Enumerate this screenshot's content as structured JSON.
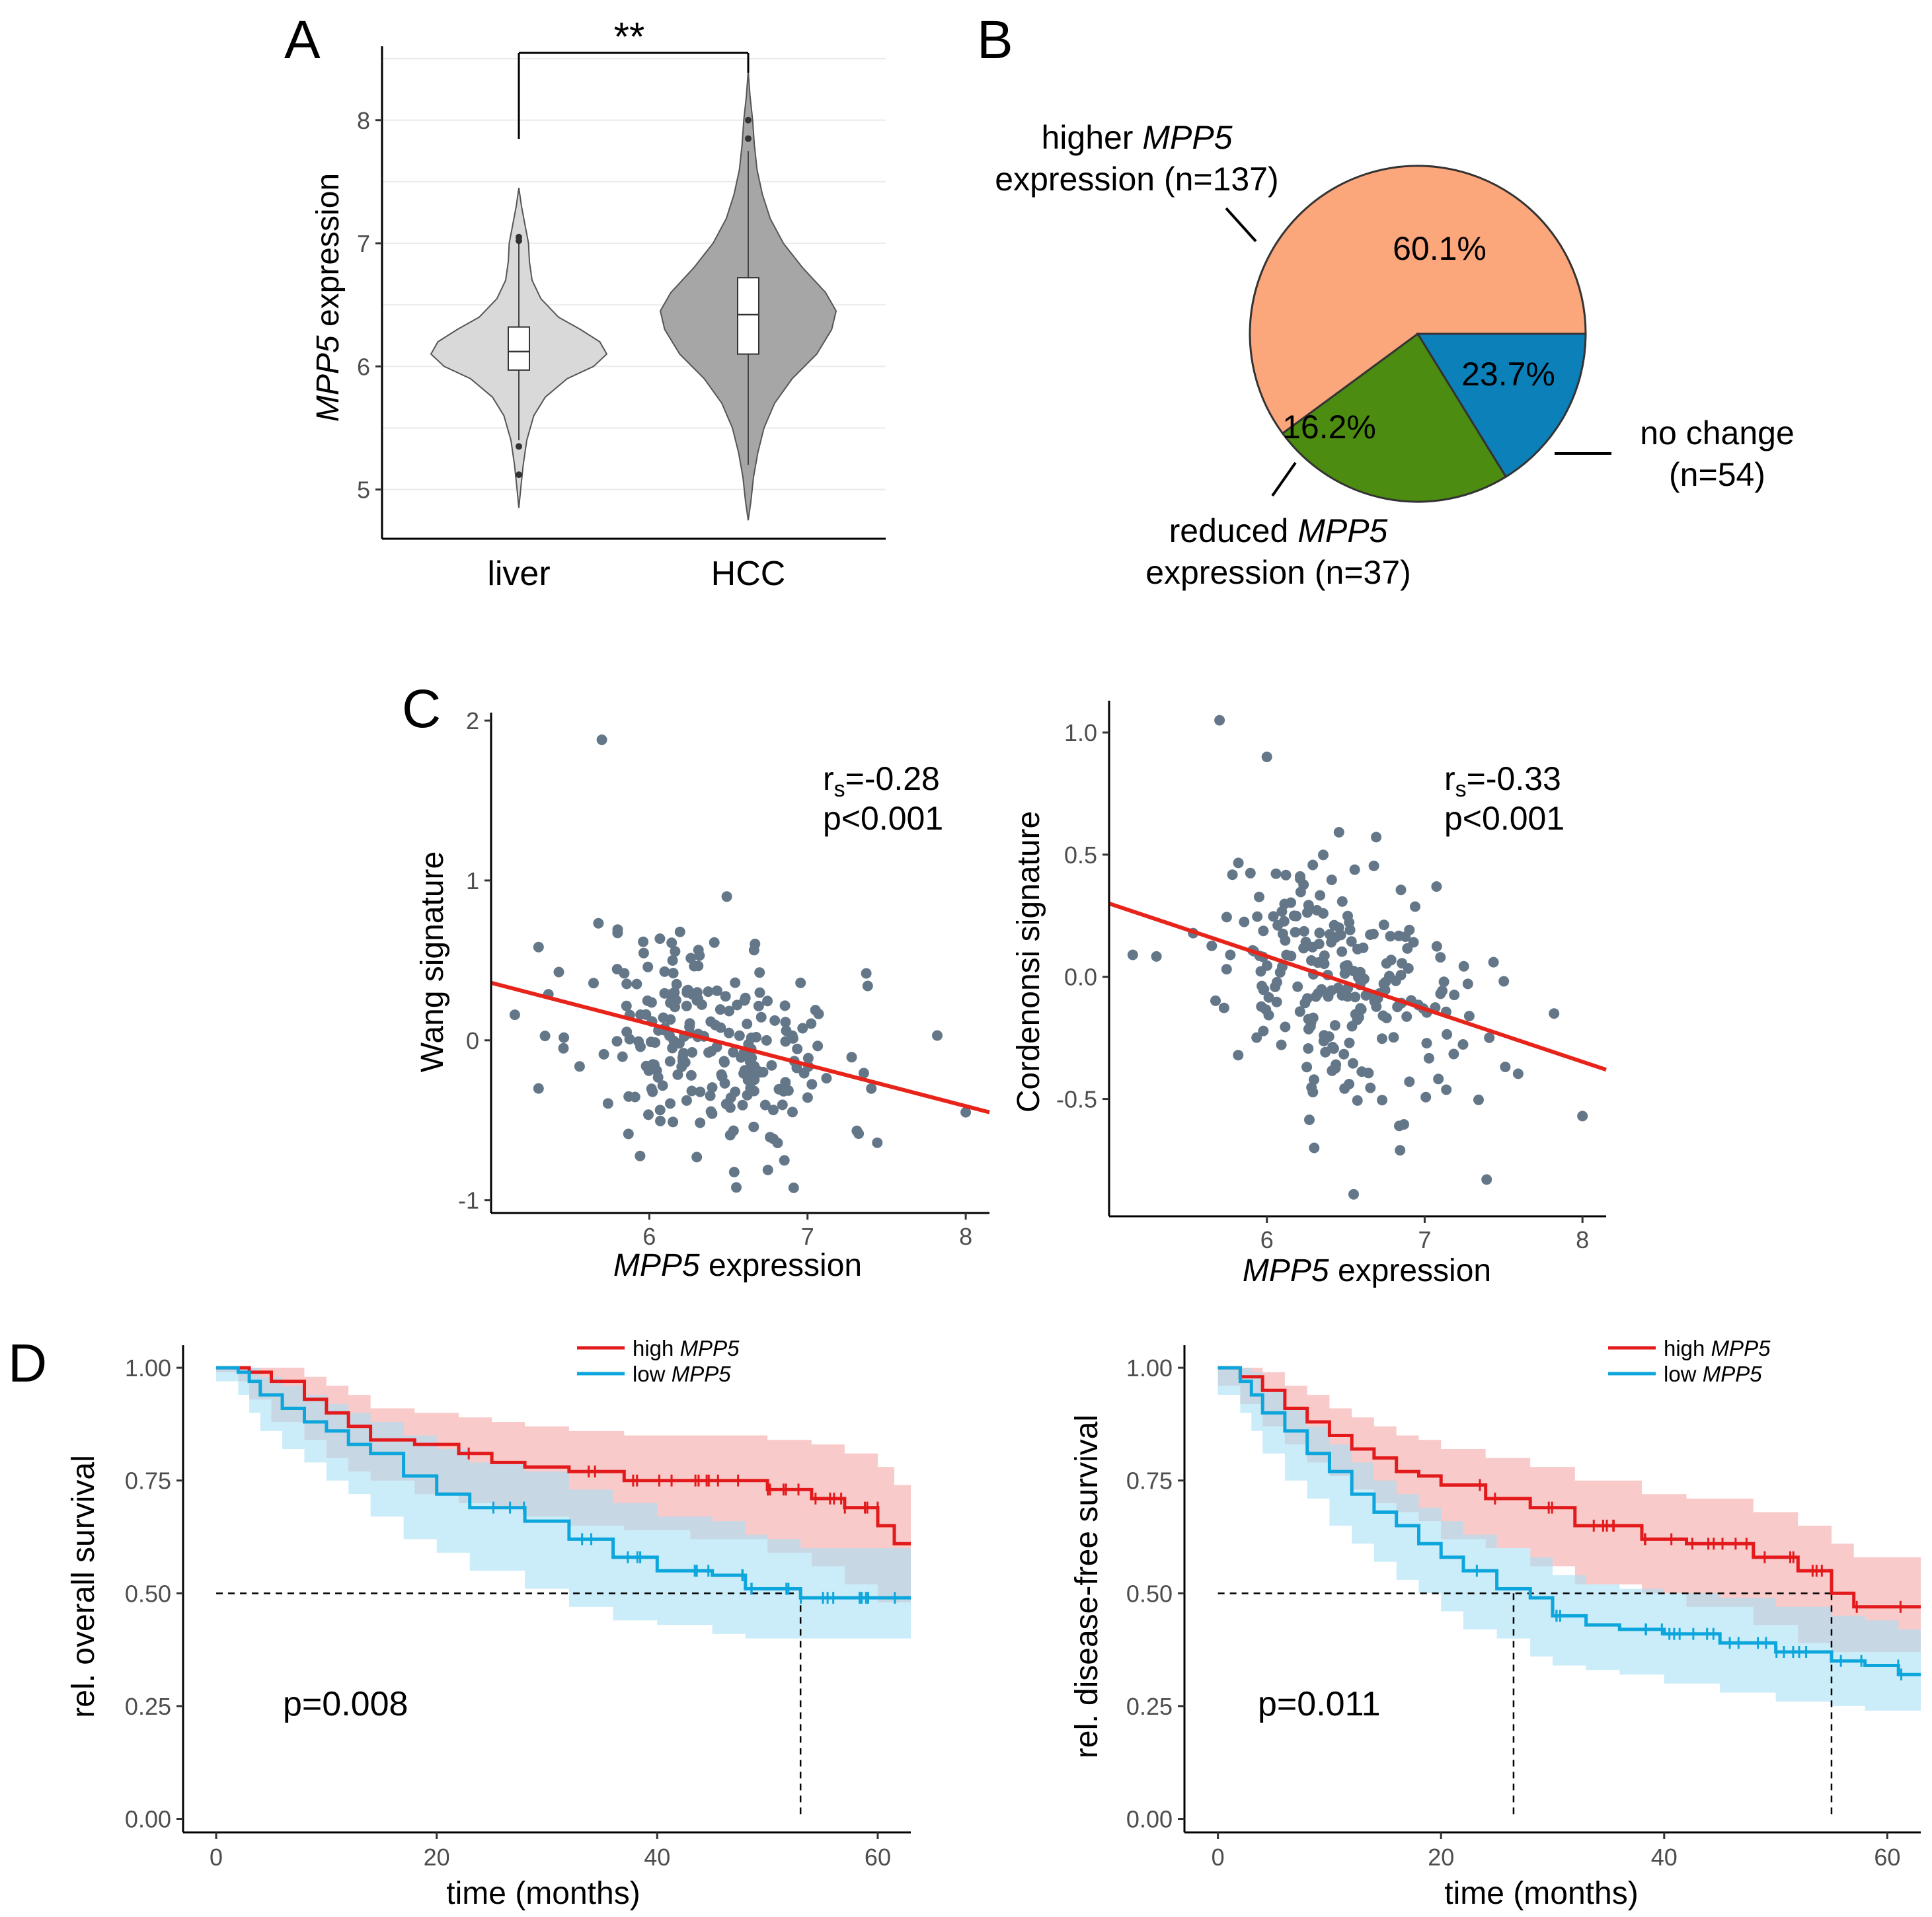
{
  "panels": {
    "A": {
      "letter": "A",
      "chart_data": {
        "type": "violin",
        "categories": [
          "liver",
          "HCC"
        ],
        "ylabel_gene": "MPP5",
        "ylabel_rest": " expression",
        "yticks": [
          5,
          6,
          7,
          8
        ],
        "ylim": [
          4.6,
          8.6
        ],
        "significance": "**",
        "groups": [
          {
            "name": "liver",
            "median": 6.12,
            "q1": 5.97,
            "q3": 6.32,
            "whisker_low": 5.4,
            "whisker_high": 7.0,
            "min": 4.85,
            "max": 7.45,
            "color": "#d9d9d9",
            "density": [
              [
                4.85,
                0.0
              ],
              [
                5.0,
                0.02
              ],
              [
                5.2,
                0.05
              ],
              [
                5.4,
                0.09
              ],
              [
                5.6,
                0.17
              ],
              [
                5.75,
                0.3
              ],
              [
                5.9,
                0.55
              ],
              [
                6.0,
                0.85
              ],
              [
                6.1,
                1.0
              ],
              [
                6.2,
                0.92
              ],
              [
                6.3,
                0.7
              ],
              [
                6.4,
                0.45
              ],
              [
                6.55,
                0.25
              ],
              [
                6.7,
                0.15
              ],
              [
                6.85,
                0.12
              ],
              [
                7.0,
                0.11
              ],
              [
                7.15,
                0.07
              ],
              [
                7.3,
                0.03
              ],
              [
                7.45,
                0.0
              ]
            ],
            "outliers": [
              5.35,
              5.12,
              7.02,
              7.05
            ]
          },
          {
            "name": "HCC",
            "median": 6.42,
            "q1": 6.1,
            "q3": 6.72,
            "whisker_low": 5.2,
            "whisker_high": 7.75,
            "min": 4.75,
            "max": 8.4,
            "color": "#a6a6a6",
            "density": [
              [
                4.75,
                0.0
              ],
              [
                4.9,
                0.03
              ],
              [
                5.1,
                0.06
              ],
              [
                5.3,
                0.11
              ],
              [
                5.5,
                0.18
              ],
              [
                5.7,
                0.3
              ],
              [
                5.9,
                0.5
              ],
              [
                6.1,
                0.78
              ],
              [
                6.3,
                0.95
              ],
              [
                6.45,
                1.0
              ],
              [
                6.6,
                0.88
              ],
              [
                6.8,
                0.62
              ],
              [
                7.0,
                0.4
              ],
              [
                7.2,
                0.25
              ],
              [
                7.4,
                0.16
              ],
              [
                7.6,
                0.1
              ],
              [
                7.8,
                0.07
              ],
              [
                8.0,
                0.05
              ],
              [
                8.2,
                0.02
              ],
              [
                8.4,
                0.0
              ]
            ],
            "outliers": [
              7.85,
              8.0
            ]
          }
        ]
      }
    },
    "B": {
      "letter": "B",
      "chart_data": {
        "type": "pie",
        "slices": [
          {
            "label": "higher MPP5 expression (n=137)",
            "value": 60.1,
            "pct": "60.1%",
            "color": "#fca67c"
          },
          {
            "label": "no change (n=54)",
            "value": 23.7,
            "pct": "23.7%",
            "color": "#4c8c10"
          },
          {
            "label": "reduced MPP5 expression (n=37)",
            "value": 16.2,
            "pct": "16.2%",
            "color": "#0c80b8"
          }
        ]
      },
      "labels": {
        "higher_l1_pre": "higher ",
        "higher_l1_gene": "MPP5",
        "higher_l2": "expression (n=137)",
        "nochange_l1": "no change",
        "nochange_l2": "(n=54)",
        "reduced_l1_pre": "reduced ",
        "reduced_l1_gene": "MPP5",
        "reduced_l2": "expression (n=37)"
      }
    },
    "C": {
      "letter": "C",
      "chart_data": [
        {
          "type": "scatter",
          "ylabel": "Wang signature",
          "xlabel_gene": "MPP5",
          "xlabel_rest": " expression",
          "xticks": [
            6,
            7,
            8
          ],
          "yticks": [
            -1,
            0,
            1,
            2
          ],
          "xlim": [
            5.0,
            8.15
          ],
          "ylim": [
            -1.08,
            2.05
          ],
          "fit": {
            "x0": 5.0,
            "y0": 0.36,
            "x1": 8.15,
            "y1": -0.45
          },
          "stat_r_main": "r",
          "stat_r_sub": "s",
          "stat_r_val": "=-0.28",
          "stat_p": "p<0.001",
          "color": "#647789",
          "line_color": "#e8231a",
          "seed": 11,
          "n_points": 228,
          "slope": -0.26,
          "intercept": 1.66,
          "noise": 0.34,
          "x_mean": 6.4,
          "x_sd": 0.42,
          "extra_points": [
            [
              5.7,
              1.88
            ],
            [
              5.15,
              0.16
            ],
            [
              7.82,
              0.03
            ],
            [
              6.55,
              -0.92
            ],
            [
              8.0,
              -0.45
            ],
            [
              6.3,
              -0.73
            ]
          ]
        },
        {
          "type": "scatter",
          "ylabel": "Cordenonsi signature",
          "xlabel_gene": "MPP5",
          "xlabel_rest": " expression",
          "xticks": [
            6,
            7,
            8
          ],
          "yticks": [
            -0.5,
            0.0,
            0.5,
            1.0
          ],
          "ytick_labels": [
            "-0.5",
            "0.0",
            "0.5",
            "1.0"
          ],
          "xlim": [
            5.0,
            8.15
          ],
          "ylim": [
            -0.98,
            1.13
          ],
          "fit": {
            "x0": 5.0,
            "y0": 0.3,
            "x1": 8.15,
            "y1": -0.38
          },
          "stat_r_main": "r",
          "stat_r_sub": "s",
          "stat_r_val": "=-0.33",
          "stat_p": "p<0.001",
          "color": "#647789",
          "line_color": "#e8231a",
          "seed": 29,
          "n_points": 228,
          "slope": -0.21,
          "intercept": 1.35,
          "noise": 0.24,
          "x_mean": 6.4,
          "x_sd": 0.42,
          "extra_points": [
            [
              5.7,
              1.05
            ],
            [
              6.0,
              0.9
            ],
            [
              5.15,
              0.09
            ],
            [
              6.3,
              -0.7
            ],
            [
              6.55,
              -0.89
            ],
            [
              8.0,
              -0.57
            ],
            [
              7.82,
              -0.15
            ]
          ]
        }
      ]
    },
    "D": {
      "letter": "D",
      "chart_data": [
        {
          "type": "line",
          "subtype": "kaplan-meier",
          "ylabel": "rel. overall survival",
          "xlabel": "time (months)",
          "xticks": [
            0,
            20,
            40,
            60
          ],
          "yticks": [
            0.0,
            0.25,
            0.5,
            0.75,
            1.0
          ],
          "ytick_labels": [
            "0.00",
            "0.25",
            "0.50",
            "0.75",
            "1.00"
          ],
          "xlim": [
            -3,
            63
          ],
          "ylim": [
            -0.03,
            1.05
          ],
          "pvalue": "p=0.008",
          "median_lines": [
            53
          ],
          "series": [
            {
              "name": "high",
              "gene": "MPP5",
              "color": "#e31a1c",
              "band": "#f4a6a6",
              "x": [
                0,
                2,
                3,
                5,
                8,
                10,
                12,
                14,
                18,
                22,
                25,
                28,
                32,
                37,
                43,
                50,
                54,
                57,
                60,
                61.5,
                63
              ],
              "y": [
                1.0,
                1.0,
                0.99,
                0.97,
                0.93,
                0.9,
                0.87,
                0.84,
                0.83,
                0.81,
                0.79,
                0.78,
                0.77,
                0.75,
                0.75,
                0.73,
                0.71,
                0.69,
                0.65,
                0.61,
                0.61
              ],
              "lower": [
                1.0,
                0.99,
                0.97,
                0.93,
                0.88,
                0.84,
                0.8,
                0.77,
                0.75,
                0.72,
                0.7,
                0.69,
                0.67,
                0.65,
                0.64,
                0.62,
                0.59,
                0.56,
                0.52,
                0.48,
                0.48
              ],
              "upper": [
                1.0,
                1.0,
                1.0,
                1.0,
                0.98,
                0.96,
                0.94,
                0.91,
                0.9,
                0.89,
                0.88,
                0.87,
                0.86,
                0.85,
                0.85,
                0.84,
                0.83,
                0.81,
                0.78,
                0.74,
                0.74
              ]
            },
            {
              "name": "low",
              "gene": "MPP5",
              "color": "#0ca6dc",
              "band": "#a8e0f5",
              "x": [
                0,
                2,
                3,
                4,
                6,
                8,
                10,
                12,
                14,
                17,
                20,
                23,
                28,
                32,
                36,
                40,
                45,
                48,
                50,
                53,
                56,
                60,
                63
              ],
              "y": [
                1.0,
                0.99,
                0.97,
                0.94,
                0.91,
                0.88,
                0.86,
                0.83,
                0.81,
                0.76,
                0.72,
                0.69,
                0.66,
                0.62,
                0.58,
                0.55,
                0.54,
                0.51,
                0.51,
                0.49,
                0.49,
                0.49,
                0.49
              ],
              "lower": [
                1.0,
                0.97,
                0.94,
                0.9,
                0.86,
                0.82,
                0.79,
                0.75,
                0.72,
                0.67,
                0.62,
                0.59,
                0.55,
                0.51,
                0.47,
                0.44,
                0.43,
                0.41,
                0.4,
                0.4,
                0.4,
                0.4,
                0.4
              ],
              "upper": [
                1.0,
                1.0,
                1.0,
                0.98,
                0.96,
                0.94,
                0.92,
                0.9,
                0.88,
                0.85,
                0.82,
                0.79,
                0.77,
                0.73,
                0.7,
                0.67,
                0.66,
                0.63,
                0.62,
                0.6,
                0.6,
                0.6,
                0.6
              ]
            }
          ]
        },
        {
          "type": "line",
          "subtype": "kaplan-meier",
          "ylabel": "rel. disease-free survival",
          "xlabel": "time (months)",
          "xticks": [
            0,
            20,
            40,
            60
          ],
          "yticks": [
            0.0,
            0.25,
            0.5,
            0.75,
            1.0
          ],
          "ytick_labels": [
            "0.00",
            "0.25",
            "0.50",
            "0.75",
            "1.00"
          ],
          "xlim": [
            -3,
            63
          ],
          "ylim": [
            -0.03,
            1.05
          ],
          "pvalue": "p=0.011",
          "median_lines": [
            26.5,
            55
          ],
          "series": [
            {
              "name": "high",
              "gene": "MPP5",
              "color": "#e31a1c",
              "band": "#f4a6a6",
              "x": [
                0,
                2,
                4,
                6,
                8,
                10,
                12,
                14,
                16,
                18,
                20,
                24,
                28,
                32,
                38,
                42,
                48,
                52,
                55,
                57,
                63
              ],
              "y": [
                1.0,
                0.98,
                0.95,
                0.91,
                0.88,
                0.85,
                0.82,
                0.8,
                0.77,
                0.76,
                0.74,
                0.71,
                0.69,
                0.65,
                0.62,
                0.61,
                0.58,
                0.55,
                0.5,
                0.47,
                0.47
              ],
              "lower": [
                1.0,
                0.96,
                0.92,
                0.87,
                0.83,
                0.79,
                0.76,
                0.73,
                0.7,
                0.68,
                0.66,
                0.62,
                0.6,
                0.56,
                0.52,
                0.5,
                0.47,
                0.43,
                0.39,
                0.37,
                0.37
              ],
              "upper": [
                1.0,
                1.0,
                0.99,
                0.96,
                0.94,
                0.91,
                0.89,
                0.87,
                0.85,
                0.84,
                0.82,
                0.8,
                0.78,
                0.75,
                0.72,
                0.71,
                0.68,
                0.65,
                0.61,
                0.58,
                0.58
              ]
            },
            {
              "name": "low",
              "gene": "MPP5",
              "color": "#0ca6dc",
              "band": "#a8e0f5",
              "x": [
                0,
                2,
                3,
                4,
                6,
                8,
                10,
                12,
                14,
                16,
                18,
                20,
                22,
                25,
                28,
                30,
                33,
                36,
                40,
                45,
                50,
                55,
                58,
                61,
                63
              ],
              "y": [
                1.0,
                0.97,
                0.94,
                0.9,
                0.86,
                0.81,
                0.77,
                0.72,
                0.68,
                0.65,
                0.61,
                0.58,
                0.55,
                0.51,
                0.49,
                0.45,
                0.43,
                0.42,
                0.41,
                0.39,
                0.37,
                0.35,
                0.34,
                0.32,
                0.32
              ],
              "lower": [
                1.0,
                0.94,
                0.9,
                0.86,
                0.81,
                0.75,
                0.71,
                0.65,
                0.61,
                0.57,
                0.53,
                0.5,
                0.46,
                0.42,
                0.4,
                0.36,
                0.34,
                0.33,
                0.32,
                0.3,
                0.28,
                0.26,
                0.25,
                0.24,
                0.24
              ],
              "upper": [
                1.0,
                1.0,
                0.99,
                0.95,
                0.91,
                0.87,
                0.83,
                0.79,
                0.75,
                0.72,
                0.69,
                0.66,
                0.63,
                0.6,
                0.58,
                0.54,
                0.52,
                0.51,
                0.5,
                0.49,
                0.47,
                0.45,
                0.44,
                0.42,
                0.42
              ]
            }
          ]
        }
      ]
    }
  }
}
